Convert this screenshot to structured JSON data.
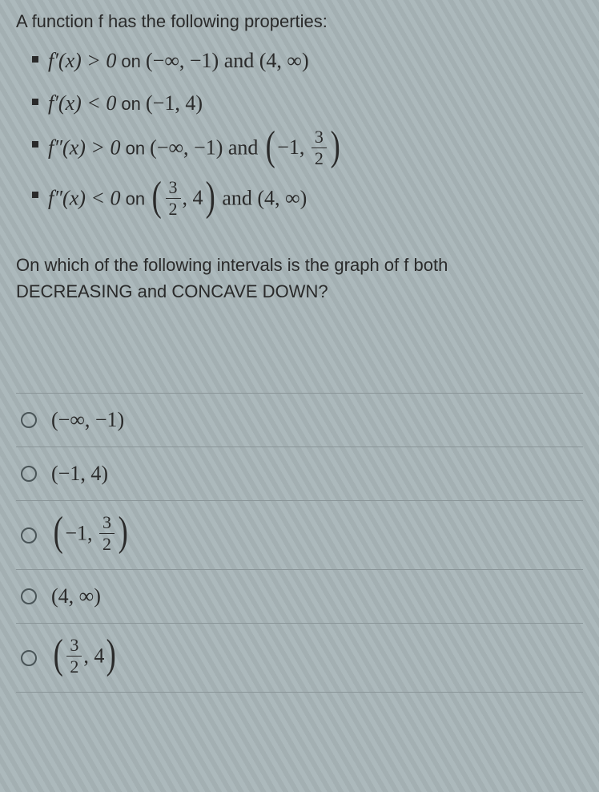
{
  "intro": "A function f has the following properties:",
  "props": {
    "p1": {
      "lhs": "f′(x) > 0",
      "on": " on ",
      "int1": "(−∞, −1)",
      "and": " and ",
      "int2": "(4, ∞)"
    },
    "p2": {
      "lhs": "f′(x) < 0",
      "on": " on ",
      "int1": "(−1, 4)"
    },
    "p3": {
      "lhs": "f″(x) > 0",
      "on": " on ",
      "int1": "(−∞, −1)",
      "and": " and ",
      "paren_open": "(",
      "a": "−1, ",
      "frac_num": "3",
      "frac_den": "2",
      "paren_close": ")"
    },
    "p4": {
      "lhs": "f″(x) < 0",
      "on": " on ",
      "paren_open1": "(",
      "frac1_num": "3",
      "frac1_den": "2",
      "comma4": ", 4",
      "paren_close1": ")",
      "and": " and ",
      "int2": "(4, ∞)"
    }
  },
  "question_line1": "On which of the following intervals is the graph of f both",
  "question_line2": "DECREASING and CONCAVE DOWN?",
  "options": {
    "o1": {
      "text": "(−∞, −1)"
    },
    "o2": {
      "text": "(−1, 4)"
    },
    "o3": {
      "paren_open": "(",
      "a": "−1, ",
      "frac_num": "3",
      "frac_den": "2",
      "paren_close": ")"
    },
    "o4": {
      "text": "(4, ∞)"
    },
    "o5": {
      "paren_open": "(",
      "frac_num": "3",
      "frac_den": "2",
      "comma": ", 4",
      "paren_close": ")"
    }
  }
}
